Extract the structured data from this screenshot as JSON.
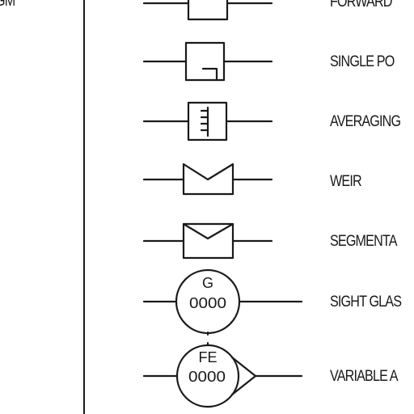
{
  "left_column_fragment": "GM",
  "symbols": [
    {
      "label": "FORWARD",
      "icon": "forward-flow-element-icon"
    },
    {
      "label": "SINGLE PO",
      "icon": "single-port-pitot-icon"
    },
    {
      "label": "AVERAGING",
      "icon": "averaging-pitot-icon"
    },
    {
      "label": "WEIR",
      "icon": "weir-icon"
    },
    {
      "label": "SEGMENTA",
      "icon": "segmental-wedge-icon"
    },
    {
      "label": "SIGHT GLAS",
      "icon": "sight-glass-icon",
      "tag_letters": "G",
      "tag_number": "0000"
    },
    {
      "label": "VARIABLE A",
      "icon": "variable-area-meter-icon",
      "tag_letters": "FE",
      "tag_number": "0000"
    }
  ],
  "colors": {
    "ink": "#1a1a1a",
    "background": "#ffffff"
  }
}
